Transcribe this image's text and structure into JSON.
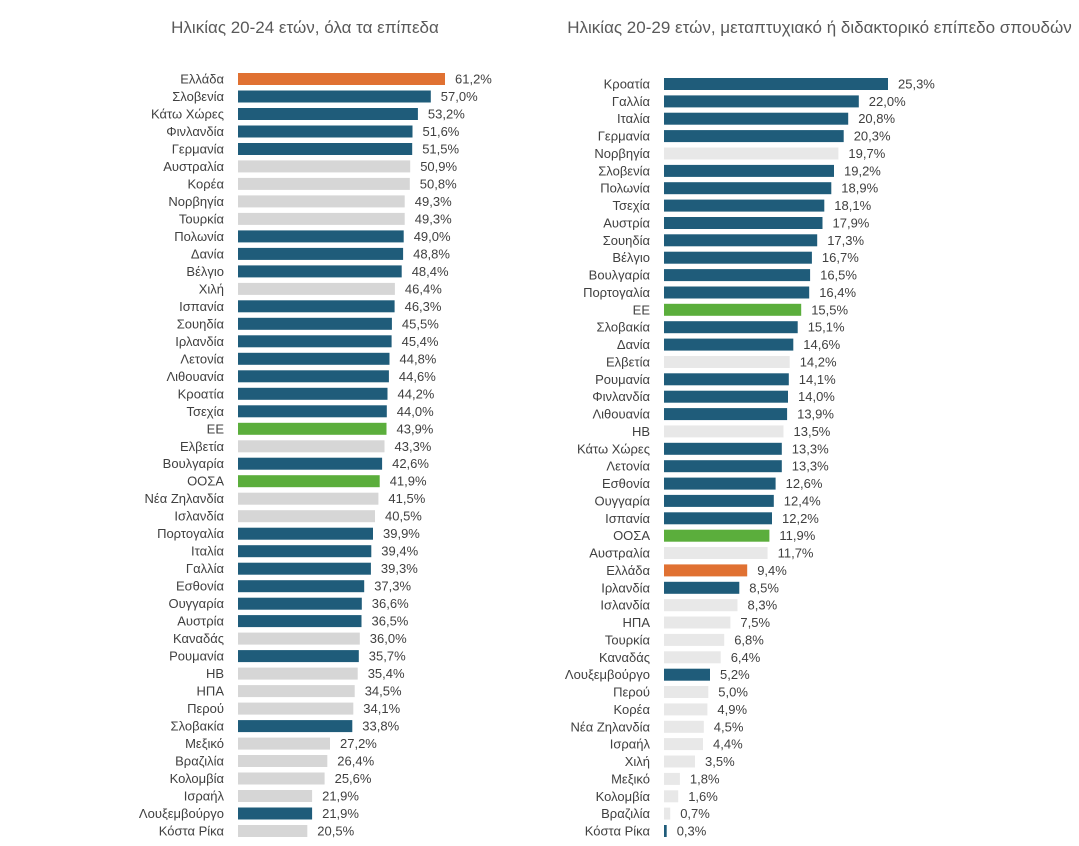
{
  "colors": {
    "greece": "#E07132",
    "highlight_green": "#5BAE3C",
    "eu_member": "#1F5C7A",
    "non_eu_left": "#D6D6D6",
    "non_eu_right": "#E8E8E8",
    "text": "#404040"
  },
  "chart_data": [
    {
      "type": "bar",
      "orientation": "horizontal",
      "title": "Ηλικίας 20-24 ετών, όλα τα επίπεδα",
      "categories": [
        "Ελλάδα",
        "Σλοβενία",
        "Κάτω Χώρες",
        "Φινλανδία",
        "Γερμανία",
        "Αυστραλία",
        "Κορέα",
        "Νορβηγία",
        "Τουρκία",
        "Πολωνία",
        "Δανία",
        "Βέλγιο",
        "Χιλή",
        "Ισπανία",
        "Σουηδία",
        "Ιρλανδία",
        "Λετονία",
        "Λιθουανία",
        "Κροατία",
        "Τσεχία",
        "ΕΕ",
        "Ελβετία",
        "Βουλγαρία",
        "ΟΟΣΑ",
        "Νέα Ζηλανδία",
        "Ισλανδία",
        "Πορτογαλία",
        "Ιταλία",
        "Γαλλία",
        "Εσθονία",
        "Ουγγαρία",
        "Αυστρία",
        "Καναδάς",
        "Ρουμανία",
        "ΗΒ",
        "ΗΠΑ",
        "Περού",
        "Σλοβακία",
        "Μεξικό",
        "Βραζιλία",
        "Κολομβία",
        "Ισραήλ",
        "Λουξεμβούργο",
        "Κόστα Ρίκα"
      ],
      "values": [
        61.2,
        57.0,
        53.2,
        51.6,
        51.5,
        50.9,
        50.8,
        49.3,
        49.3,
        49.0,
        48.8,
        48.4,
        46.4,
        46.3,
        45.5,
        45.4,
        44.8,
        44.6,
        44.2,
        44.0,
        43.9,
        43.3,
        42.6,
        41.9,
        41.5,
        40.5,
        39.9,
        39.4,
        39.3,
        37.3,
        36.6,
        36.5,
        36.0,
        35.7,
        35.4,
        34.5,
        34.1,
        33.8,
        27.2,
        26.4,
        25.6,
        21.9,
        21.9,
        20.5
      ],
      "labels": [
        "61,2%",
        "57,0%",
        "53,2%",
        "51,6%",
        "51,5%",
        "50,9%",
        "50,8%",
        "49,3%",
        "49,3%",
        "49,0%",
        "48,8%",
        "48,4%",
        "46,4%",
        "46,3%",
        "45,5%",
        "45,4%",
        "44,8%",
        "44,6%",
        "44,2%",
        "44,0%",
        "43,9%",
        "43,3%",
        "42,6%",
        "41,9%",
        "41,5%",
        "40,5%",
        "39,9%",
        "39,4%",
        "39,3%",
        "37,3%",
        "36,6%",
        "36,5%",
        "36,0%",
        "35,7%",
        "35,4%",
        "34,5%",
        "34,1%",
        "33,8%",
        "27,2%",
        "26,4%",
        "25,6%",
        "21,9%",
        "21,9%",
        "20,5%"
      ],
      "bar_colors": [
        "greece",
        "eu_member",
        "eu_member",
        "eu_member",
        "eu_member",
        "non_eu_left",
        "non_eu_left",
        "non_eu_left",
        "non_eu_left",
        "eu_member",
        "eu_member",
        "eu_member",
        "non_eu_left",
        "eu_member",
        "eu_member",
        "eu_member",
        "eu_member",
        "eu_member",
        "eu_member",
        "eu_member",
        "highlight_green",
        "non_eu_left",
        "eu_member",
        "highlight_green",
        "non_eu_left",
        "non_eu_left",
        "eu_member",
        "eu_member",
        "eu_member",
        "eu_member",
        "eu_member",
        "eu_member",
        "non_eu_left",
        "eu_member",
        "non_eu_left",
        "non_eu_left",
        "non_eu_left",
        "eu_member",
        "non_eu_left",
        "non_eu_left",
        "non_eu_left",
        "non_eu_left",
        "eu_member",
        "non_eu_left"
      ],
      "xlim": [
        0,
        61.2
      ],
      "grid": false,
      "legend": "none"
    },
    {
      "type": "bar",
      "orientation": "horizontal",
      "title": "Ηλικίας 20-29 ετών, μεταπτυχιακό ή διδακτορικό επίπεδο σπουδών",
      "categories": [
        "Κροατία",
        "Γαλλία",
        "Ιταλία",
        "Γερμανία",
        "Νορβηγία",
        "Σλοβενία",
        "Πολωνία",
        "Τσεχία",
        "Αυστρία",
        "Σουηδία",
        "Βέλγιο",
        "Βουλγαρία",
        "Πορτογαλία",
        "ΕΕ",
        "Σλοβακία",
        "Δανία",
        "Ελβετία",
        "Ρουμανία",
        "Φινλανδία",
        "Λιθουανία",
        "ΗΒ",
        "Κάτω Χώρες",
        "Λετονία",
        "Εσθονία",
        "Ουγγαρία",
        "Ισπανία",
        "ΟΟΣΑ",
        "Αυστραλία",
        "Ελλάδα",
        "Ιρλανδία",
        "Ισλανδία",
        "ΗΠΑ",
        "Τουρκία",
        "Καναδάς",
        "Λουξεμβούργο",
        "Περού",
        "Κορέα",
        "Νέα Ζηλανδία",
        "Ισραήλ",
        "Χιλή",
        "Μεξικό",
        "Κολομβία",
        "Βραζιλία",
        "Κόστα Ρίκα"
      ],
      "values": [
        25.3,
        22.0,
        20.8,
        20.3,
        19.7,
        19.2,
        18.9,
        18.1,
        17.9,
        17.3,
        16.7,
        16.5,
        16.4,
        15.5,
        15.1,
        14.6,
        14.2,
        14.1,
        14.0,
        13.9,
        13.5,
        13.3,
        13.3,
        12.6,
        12.4,
        12.2,
        11.9,
        11.7,
        9.4,
        8.5,
        8.3,
        7.5,
        6.8,
        6.4,
        5.2,
        5.0,
        4.9,
        4.5,
        4.4,
        3.5,
        1.8,
        1.6,
        0.7,
        0.3
      ],
      "labels": [
        "25,3%",
        "22,0%",
        "20,8%",
        "20,3%",
        "19,7%",
        "19,2%",
        "18,9%",
        "18,1%",
        "17,9%",
        "17,3%",
        "16,7%",
        "16,5%",
        "16,4%",
        "15,5%",
        "15,1%",
        "14,6%",
        "14,2%",
        "14,1%",
        "14,0%",
        "13,9%",
        "13,5%",
        "13,3%",
        "13,3%",
        "12,6%",
        "12,4%",
        "12,2%",
        "11,9%",
        "11,7%",
        "9,4%",
        "8,5%",
        "8,3%",
        "7,5%",
        "6,8%",
        "6,4%",
        "5,2%",
        "5,0%",
        "4,9%",
        "4,5%",
        "4,4%",
        "3,5%",
        "1,8%",
        "1,6%",
        "0,7%",
        "0,3%"
      ],
      "bar_colors": [
        "eu_member",
        "eu_member",
        "eu_member",
        "eu_member",
        "non_eu_right",
        "eu_member",
        "eu_member",
        "eu_member",
        "eu_member",
        "eu_member",
        "eu_member",
        "eu_member",
        "eu_member",
        "highlight_green",
        "eu_member",
        "eu_member",
        "non_eu_right",
        "eu_member",
        "eu_member",
        "eu_member",
        "non_eu_right",
        "eu_member",
        "eu_member",
        "eu_member",
        "eu_member",
        "eu_member",
        "highlight_green",
        "non_eu_right",
        "greece",
        "eu_member",
        "non_eu_right",
        "non_eu_right",
        "non_eu_right",
        "non_eu_right",
        "eu_member",
        "non_eu_right",
        "non_eu_right",
        "non_eu_right",
        "non_eu_right",
        "non_eu_right",
        "non_eu_right",
        "non_eu_right",
        "non_eu_right",
        "eu_member"
      ],
      "xlim": [
        0,
        25.3
      ],
      "grid": false,
      "legend": "none"
    }
  ]
}
